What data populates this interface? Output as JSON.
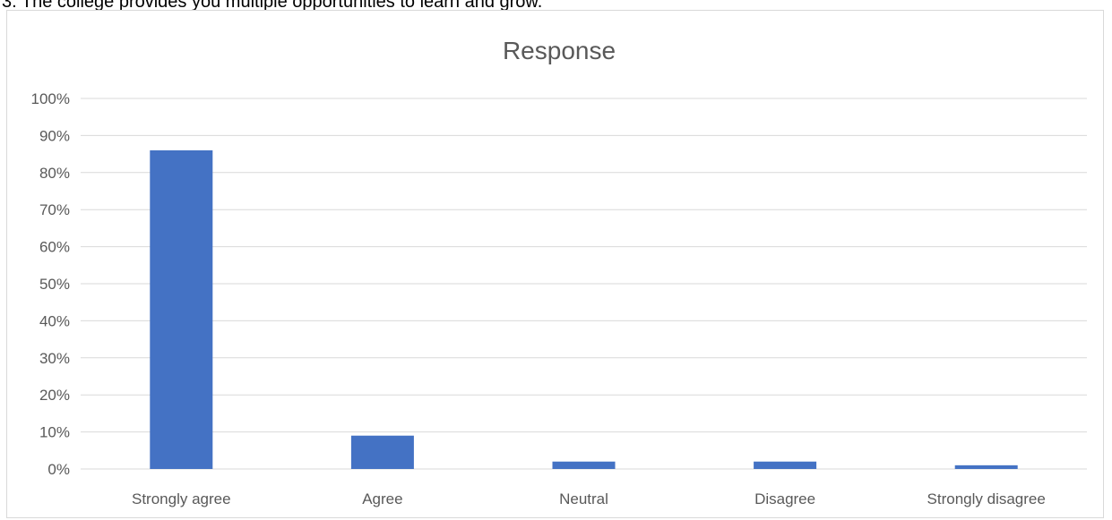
{
  "caption": "3. The college provides you multiple opportunities to learn and grow.",
  "chart_data": {
    "type": "bar",
    "title": "Response",
    "categories": [
      "Strongly agree",
      "Agree",
      "Neutral",
      "Disagree",
      "Strongly disagree"
    ],
    "values": [
      86,
      9,
      2,
      2,
      1
    ],
    "unit": "%",
    "ylim": [
      0,
      100
    ],
    "yticks": [
      "0%",
      "10%",
      "20%",
      "30%",
      "40%",
      "50%",
      "60%",
      "70%",
      "80%",
      "90%",
      "100%"
    ],
    "grid": true,
    "legend": "none",
    "bar_color": "#4472c4",
    "gridline_color": "#d9d9d9"
  }
}
